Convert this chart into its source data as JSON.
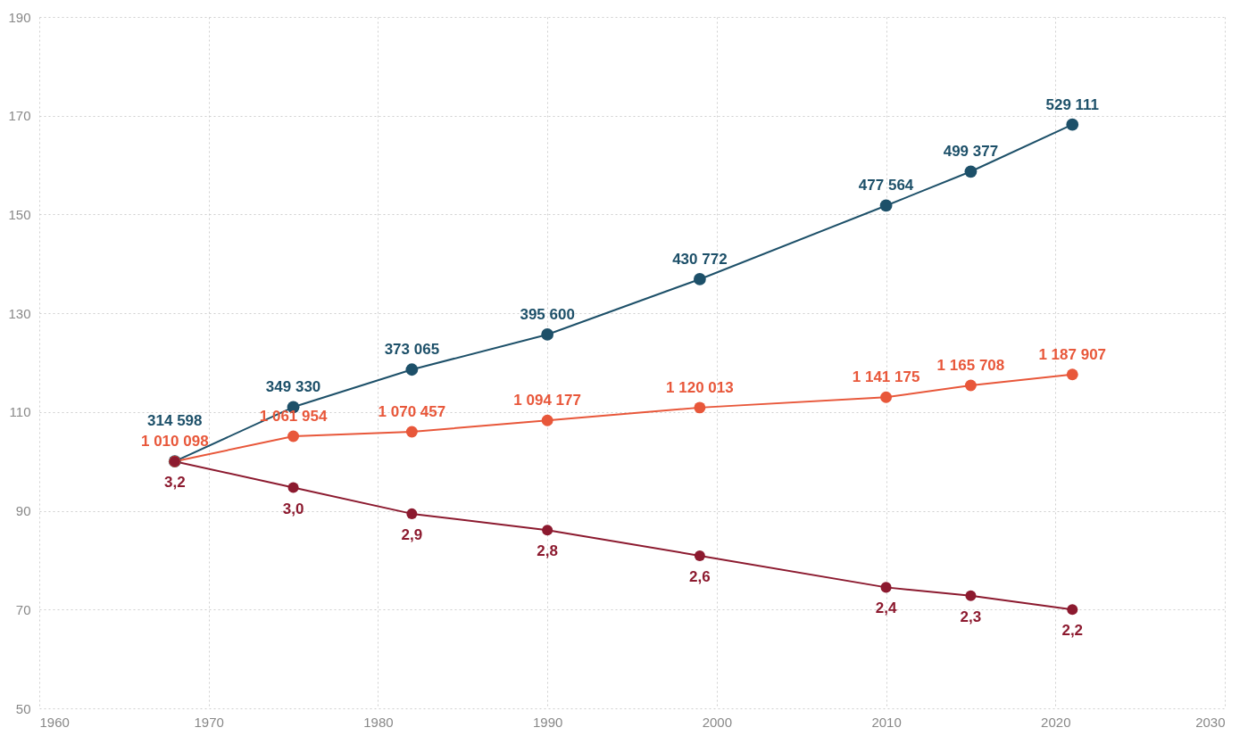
{
  "chart_data": {
    "type": "line",
    "x": [
      1968,
      1975,
      1982,
      1990,
      1999,
      2010,
      2015,
      2021
    ],
    "series": [
      {
        "color": "#1d5069",
        "values": [
          100,
          111.0,
          118.6,
          125.7,
          136.9,
          151.8,
          158.7,
          168.2
        ]
      },
      {
        "color": "#e8573a",
        "values": [
          100,
          105.1,
          106.0,
          108.3,
          110.9,
          113.0,
          115.4,
          117.6
        ]
      },
      {
        "color": "#8c1a2f",
        "values": [
          100,
          94.7,
          89.4,
          86.1,
          80.9,
          74.5,
          72.8,
          70.0
        ]
      }
    ],
    "annotations": [
      {
        "text": "314 598",
        "x": 1968,
        "y": 100
      },
      {
        "text": "349 330",
        "x": 1975,
        "y": 111.0
      },
      {
        "text": "373 065",
        "x": 1982,
        "y": 118.6
      },
      {
        "text": "395 600",
        "x": 1990,
        "y": 125.7
      },
      {
        "text": "430 772",
        "x": 1999,
        "y": 136.9
      },
      {
        "text": "477 564",
        "x": 2010,
        "y": 151.8
      },
      {
        "text": "499 377",
        "x": 2015,
        "y": 158.7
      },
      {
        "text": "529 111",
        "x": 2021,
        "y": 168.2
      },
      {
        "text": "1 010 098",
        "x": 1968,
        "y": 100
      },
      {
        "text": "1 061 954",
        "x": 1975,
        "y": 105.1
      },
      {
        "text": "1 070 457",
        "x": 1982,
        "y": 106.0
      },
      {
        "text": "1 094 177",
        "x": 1990,
        "y": 108.3
      },
      {
        "text": "1 120 013",
        "x": 1999,
        "y": 110.9
      },
      {
        "text": "1 141 175",
        "x": 2010,
        "y": 113.0
      },
      {
        "text": "1 165 708",
        "x": 2015,
        "y": 115.4
      },
      {
        "text": "1 187 907",
        "x": 2021,
        "y": 117.6
      },
      {
        "text": "3,2",
        "x": 1968,
        "y": 100
      },
      {
        "text": "3,0",
        "x": 1975,
        "y": 94.7
      },
      {
        "text": "2,9",
        "x": 1982,
        "y": 89.4
      },
      {
        "text": "2,8",
        "x": 1990,
        "y": 86.1
      },
      {
        "text": "2,6",
        "x": 1999,
        "y": 80.9
      },
      {
        "text": "2,4",
        "x": 2010,
        "y": 74.5
      },
      {
        "text": "2,3",
        "x": 2015,
        "y": 72.8
      },
      {
        "text": "2,2",
        "x": 2021,
        "y": 70.0
      }
    ],
    "xlim": [
      1960,
      2030
    ],
    "xticks": [
      1960,
      1970,
      1980,
      1990,
      2000,
      2010,
      2020,
      2030
    ],
    "ylim": [
      50,
      190
    ],
    "yticks": [
      50,
      70,
      90,
      110,
      130,
      150,
      170,
      190
    ],
    "grid": true,
    "legend": false,
    "marker": "circle",
    "line_style": "solid"
  }
}
